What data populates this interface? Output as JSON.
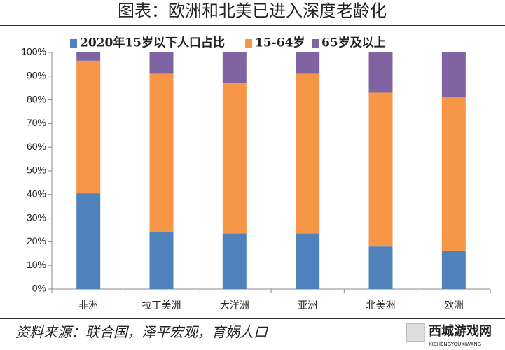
{
  "chart_data": {
    "type": "stacked_bar",
    "title": "图表：欧洲和北美已进入深度老龄化",
    "categories": [
      "非洲",
      "拉丁美洲",
      "大洋洲",
      "亚洲",
      "北美洲",
      "欧洲"
    ],
    "series": [
      {
        "name": "2020年15岁以下人口占比",
        "color": "#4f81bd",
        "values": [
          40.5,
          24,
          23.5,
          23.5,
          18,
          16
        ]
      },
      {
        "name": "15-64岁",
        "color": "#f79646",
        "values": [
          56,
          67,
          63.5,
          67.5,
          65,
          65
        ]
      },
      {
        "name": "65岁及以上",
        "color": "#8064a2",
        "values": [
          3.5,
          9,
          13,
          9,
          17,
          19
        ]
      }
    ],
    "ylim": [
      0,
      100
    ],
    "yticks": [
      {
        "value": 0,
        "label": "0%"
      },
      {
        "value": 10,
        "label": "10%"
      },
      {
        "value": 20,
        "label": "20%"
      },
      {
        "value": 30,
        "label": "30%"
      },
      {
        "value": 40,
        "label": "40%"
      },
      {
        "value": 50,
        "label": "50%"
      },
      {
        "value": 60,
        "label": "60%"
      },
      {
        "value": 70,
        "label": "70%"
      },
      {
        "value": 80,
        "label": "80%"
      },
      {
        "value": 90,
        "label": "90%"
      },
      {
        "value": 100,
        "label": "100%"
      }
    ],
    "grid": false,
    "source": "资料来源：联合国，泽平宏观，育娲人口",
    "watermark": "西城游戏网",
    "watermark_sub": "XICHENGYOUXIWANG"
  }
}
